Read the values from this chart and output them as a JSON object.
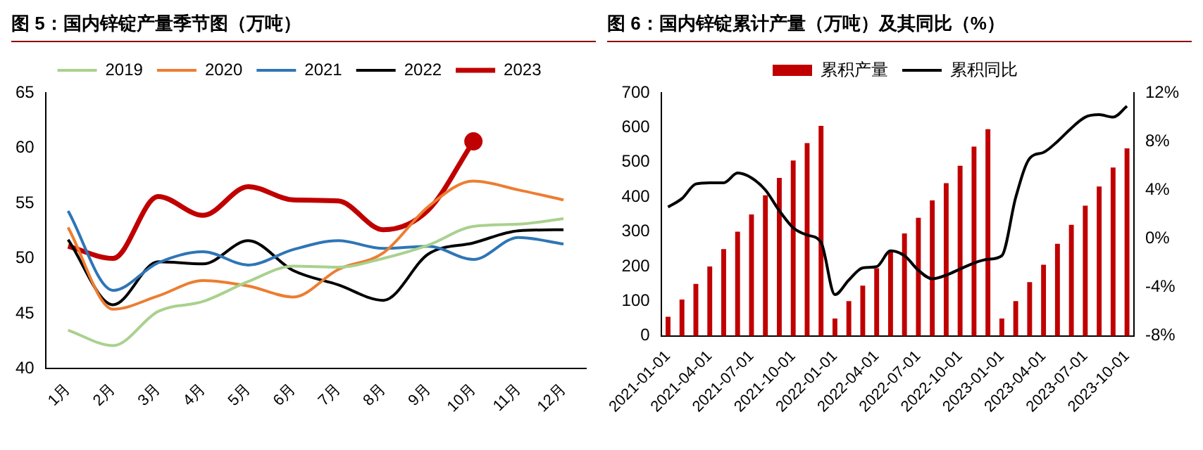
{
  "chart_data": [
    {
      "type": "line",
      "title": "图 5：国内锌锭产量季节图（万吨）",
      "categories": [
        "1月",
        "2月",
        "3月",
        "4月",
        "5月",
        "6月",
        "7月",
        "8月",
        "9月",
        "10月",
        "11月",
        "12月"
      ],
      "series": [
        {
          "name": "2019",
          "color": "#a9d18e",
          "values": [
            43.5,
            42.1,
            45.2,
            46.1,
            47.9,
            49.3,
            49.2,
            50.0,
            51.2,
            52.9,
            53.1,
            53.6
          ]
        },
        {
          "name": "2020",
          "color": "#ed7d31",
          "values": [
            52.8,
            45.4,
            46.6,
            48.0,
            47.5,
            46.5,
            49.0,
            50.5,
            54.7,
            57.0,
            56.2,
            55.3
          ]
        },
        {
          "name": "2021",
          "color": "#2e75b6",
          "values": [
            54.3,
            47.1,
            49.6,
            50.6,
            49.4,
            50.8,
            51.6,
            50.9,
            51.1,
            49.9,
            51.9,
            51.3
          ]
        },
        {
          "name": "2022",
          "color": "#000000",
          "values": [
            51.7,
            45.8,
            49.7,
            49.5,
            51.6,
            48.9,
            47.6,
            46.2,
            50.4,
            51.4,
            52.5,
            52.6
          ]
        },
        {
          "name": "2023",
          "color": "#c00000",
          "values": [
            51.1,
            50.0,
            55.6,
            53.9,
            56.5,
            55.3,
            55.2,
            52.6,
            54.4,
            60.6,
            null,
            null
          ]
        },
        {
          "type": "scatter",
          "color": "#c00000",
          "marker": "circle",
          "x": [
            "10月"
          ],
          "values": [
            60.6
          ]
        }
      ],
      "ylim": [
        40,
        65
      ],
      "yticks": [
        40,
        45,
        50,
        55,
        60,
        65
      ],
      "grid": false,
      "legend": "top",
      "marker": "none"
    },
    {
      "type": "bar",
      "title": "图 6：国内锌锭累计产量（万吨）及其同比（%）",
      "categories": [
        "2021-01-01",
        null,
        null,
        "2021-04-01",
        null,
        null,
        "2021-07-01",
        null,
        null,
        "2021-10-01",
        null,
        null,
        "2022-01-01",
        null,
        null,
        "2022-04-01",
        null,
        null,
        "2022-07-01",
        null,
        null,
        "2022-10-01",
        null,
        null,
        "2023-01-01",
        null,
        null,
        "2023-04-01",
        null,
        null,
        "2023-07-01",
        null,
        null,
        "2023-10-01"
      ],
      "series": [
        {
          "name": "累积产量",
          "type": "bar",
          "color": "#c00000",
          "values": [
            55,
            105,
            150,
            200,
            250,
            300,
            350,
            405,
            455,
            505,
            555,
            605,
            50,
            100,
            145,
            195,
            245,
            295,
            340,
            390,
            440,
            490,
            545,
            595,
            50,
            100,
            155,
            205,
            265,
            320,
            375,
            430,
            485,
            540
          ]
        },
        {
          "name": "累积同比",
          "type": "line",
          "axis": "y2",
          "color": "#000000",
          "values": [
            2.6,
            3.3,
            4.5,
            4.6,
            4.6,
            5.4,
            5.0,
            4.0,
            2.3,
            0.9,
            0.3,
            -0.3,
            -4.6,
            -3.4,
            -2.4,
            -2.3,
            -1.0,
            -1.4,
            -2.6,
            -3.3,
            -3.0,
            -2.5,
            -2.0,
            -1.7,
            -1.4,
            3.4,
            6.6,
            7.1,
            8.0,
            9.1,
            10.0,
            10.2,
            10.0,
            10.9
          ]
        }
      ],
      "ylim": [
        0,
        700
      ],
      "yticks": [
        0,
        100,
        200,
        300,
        400,
        500,
        600,
        700
      ],
      "y2lim": [
        -8,
        12
      ],
      "y2ticks": [
        {
          "value": -8,
          "label": "-8%"
        },
        {
          "value": -4,
          "label": "-4%"
        },
        {
          "value": 0,
          "label": "0%"
        },
        {
          "value": 4,
          "label": "4%"
        },
        {
          "value": 8,
          "label": "8%"
        },
        {
          "value": 12,
          "label": "12%"
        }
      ],
      "grid": false,
      "legend": "top"
    }
  ]
}
